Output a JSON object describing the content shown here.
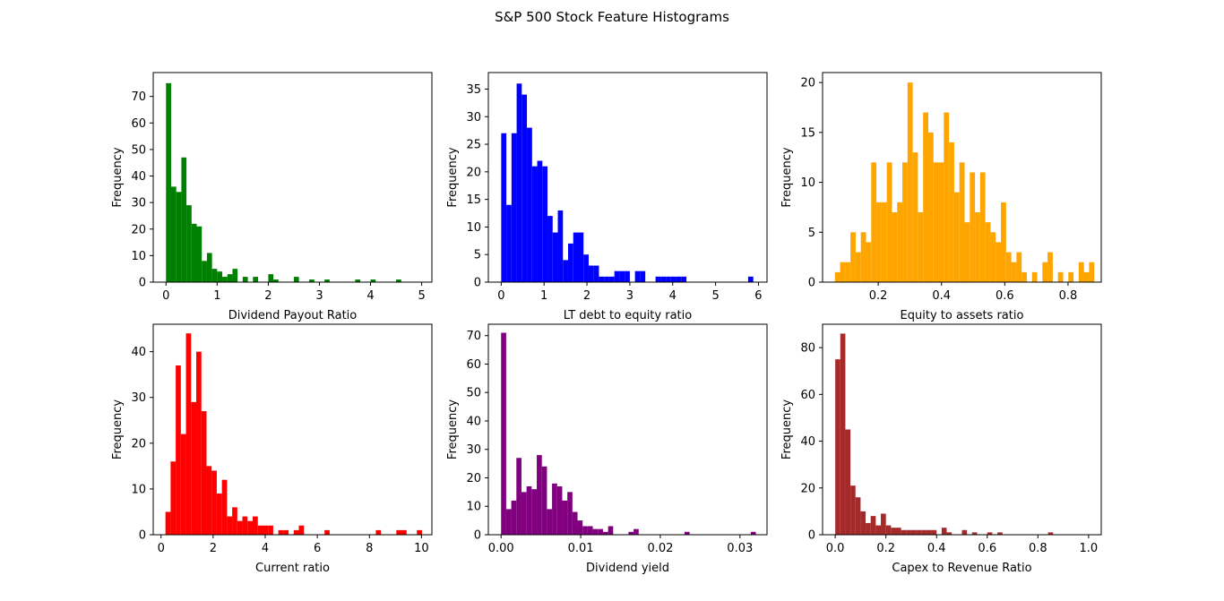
{
  "figure": {
    "title": "S&P 500 Stock Feature Histograms"
  },
  "chart_data": [
    {
      "type": "bar",
      "xlabel": "Dividend Payout Ratio",
      "ylabel": "Frequency",
      "color": "#008000",
      "xlim": [
        -0.25,
        5.2
      ],
      "ylim": [
        0,
        79
      ],
      "xticks": [
        0,
        1,
        2,
        3,
        4,
        5
      ],
      "xtick_labels": [
        "0",
        "1",
        "2",
        "3",
        "4",
        "5"
      ],
      "yticks": [
        0,
        10,
        20,
        30,
        40,
        50,
        60,
        70
      ],
      "ytick_labels": [
        "0",
        "10",
        "20",
        "30",
        "40",
        "50",
        "60",
        "70"
      ],
      "bin_start": 0.0,
      "bin_width": 0.1,
      "values": [
        75,
        36,
        34,
        47,
        29,
        22,
        21,
        8,
        11,
        5,
        4,
        2,
        3,
        5,
        0,
        2,
        0,
        2,
        0,
        0,
        3,
        1,
        0,
        0,
        0,
        2,
        0,
        0,
        1,
        0,
        0,
        1,
        0,
        0,
        0,
        0,
        0,
        1,
        0,
        0,
        1,
        0,
        0,
        0,
        0,
        1,
        0,
        0,
        0,
        0
      ]
    },
    {
      "type": "bar",
      "xlabel": "LT debt to equity ratio",
      "ylabel": "Frequency",
      "color": "#0000ff",
      "xlim": [
        -0.3,
        6.2
      ],
      "ylim": [
        0,
        38
      ],
      "xticks": [
        0,
        1,
        2,
        3,
        4,
        5,
        6
      ],
      "xtick_labels": [
        "0",
        "1",
        "2",
        "3",
        "4",
        "5",
        "6"
      ],
      "yticks": [
        0,
        5,
        10,
        15,
        20,
        25,
        30,
        35
      ],
      "ytick_labels": [
        "0",
        "5",
        "10",
        "15",
        "20",
        "25",
        "30",
        "35"
      ],
      "bin_start": 0.0,
      "bin_width": 0.12,
      "values": [
        27,
        14,
        27,
        36,
        34,
        28,
        21,
        22,
        21,
        12,
        9,
        13,
        4,
        7,
        9,
        9,
        5,
        3,
        3,
        1,
        1,
        1,
        2,
        2,
        2,
        0,
        2,
        2,
        0,
        0,
        1,
        1,
        1,
        1,
        1,
        1,
        0,
        0,
        0,
        0,
        0,
        0,
        0,
        0,
        0,
        0,
        0,
        0,
        1
      ]
    },
    {
      "type": "bar",
      "xlabel": "Equity to assets ratio",
      "ylabel": "Frequency",
      "color": "#ffa500",
      "xlim": [
        0.024,
        0.905
      ],
      "ylim": [
        0,
        21
      ],
      "xticks": [
        0.2,
        0.4,
        0.6,
        0.8
      ],
      "xtick_labels": [
        "0.2",
        "0.4",
        "0.6",
        "0.8"
      ],
      "yticks": [
        0,
        5,
        10,
        15,
        20
      ],
      "ytick_labels": [
        "0",
        "5",
        "10",
        "15",
        "20"
      ],
      "bin_start": 0.063,
      "bin_width": 0.0164,
      "values": [
        1,
        2,
        2,
        5,
        3,
        5,
        4,
        12,
        8,
        8,
        12,
        7,
        8,
        12,
        20,
        13,
        7,
        17,
        15,
        12,
        12,
        17,
        14,
        9,
        12,
        6,
        11,
        7,
        11,
        6,
        5,
        4,
        8,
        3,
        2,
        3,
        1,
        0,
        1,
        0,
        2,
        3,
        0,
        1,
        0,
        1,
        0,
        2,
        1,
        2
      ]
    },
    {
      "type": "bar",
      "xlabel": "Current ratio",
      "ylabel": "Frequency",
      "color": "#ff0000",
      "xlim": [
        -0.3,
        10.4
      ],
      "ylim": [
        0,
        46
      ],
      "xticks": [
        0,
        2,
        4,
        6,
        8,
        10
      ],
      "xtick_labels": [
        "0",
        "2",
        "4",
        "6",
        "8",
        "10"
      ],
      "yticks": [
        0,
        10,
        20,
        30,
        40
      ],
      "ytick_labels": [
        "0",
        "10",
        "20",
        "30",
        "40"
      ],
      "bin_start": 0.17,
      "bin_width": 0.197,
      "values": [
        5,
        16,
        37,
        22,
        44,
        29,
        40,
        27,
        15,
        14,
        9,
        12,
        4,
        6,
        3,
        4,
        3,
        4,
        2,
        2,
        2,
        0,
        1,
        1,
        0,
        1,
        2,
        0,
        0,
        0,
        0,
        1,
        0,
        0,
        0,
        0,
        0,
        0,
        0,
        0,
        0,
        1,
        0,
        0,
        0,
        1,
        1,
        0,
        0,
        1
      ]
    },
    {
      "type": "bar",
      "xlabel": "Dividend yield",
      "ylabel": "Frequency",
      "color": "#800080",
      "xlim": [
        -0.0016,
        0.0334
      ],
      "ylim": [
        0,
        74
      ],
      "xticks": [
        0.0,
        0.01,
        0.02,
        0.03
      ],
      "xtick_labels": [
        "0.00",
        "0.01",
        "0.02",
        "0.03"
      ],
      "yticks": [
        0,
        10,
        20,
        30,
        40,
        50,
        60,
        70
      ],
      "ytick_labels": [
        "0",
        "10",
        "20",
        "30",
        "40",
        "50",
        "60",
        "70"
      ],
      "bin_start": 0.0,
      "bin_width": 0.00064,
      "values": [
        71,
        9,
        12,
        27,
        15,
        17,
        16,
        28,
        24,
        9,
        18,
        17,
        12,
        15,
        8,
        5,
        3,
        3,
        2,
        2,
        1,
        3,
        0,
        0,
        0,
        1,
        2,
        0,
        0,
        0,
        0,
        0,
        0,
        0,
        0,
        0,
        1,
        0,
        0,
        0,
        0,
        0,
        0,
        0,
        0,
        0,
        0,
        0,
        0,
        1
      ]
    },
    {
      "type": "bar",
      "xlabel": "Capex to Revenue Ratio",
      "ylabel": "Frequency",
      "color": "#a52a2a",
      "xlim": [
        -0.05,
        1.05
      ],
      "ylim": [
        0,
        90
      ],
      "xticks": [
        0.0,
        0.2,
        0.4,
        0.6,
        0.8,
        1.0
      ],
      "xtick_labels": [
        "0.0",
        "0.2",
        "0.4",
        "0.6",
        "0.8",
        "1.0"
      ],
      "yticks": [
        0,
        20,
        40,
        60,
        80
      ],
      "ytick_labels": [
        "0",
        "20",
        "40",
        "60",
        "80"
      ],
      "bin_start": 0.0,
      "bin_width": 0.02,
      "values": [
        75,
        86,
        45,
        21,
        16,
        10,
        5,
        8,
        4,
        9,
        4,
        3,
        3,
        2,
        2,
        2,
        2,
        2,
        2,
        2,
        0,
        3,
        1,
        0,
        0,
        2,
        0,
        1,
        0,
        0,
        1,
        0,
        1,
        0,
        0,
        0,
        0,
        0,
        0,
        0,
        0,
        0,
        1,
        0,
        0,
        0,
        0,
        0,
        0,
        0
      ]
    }
  ]
}
